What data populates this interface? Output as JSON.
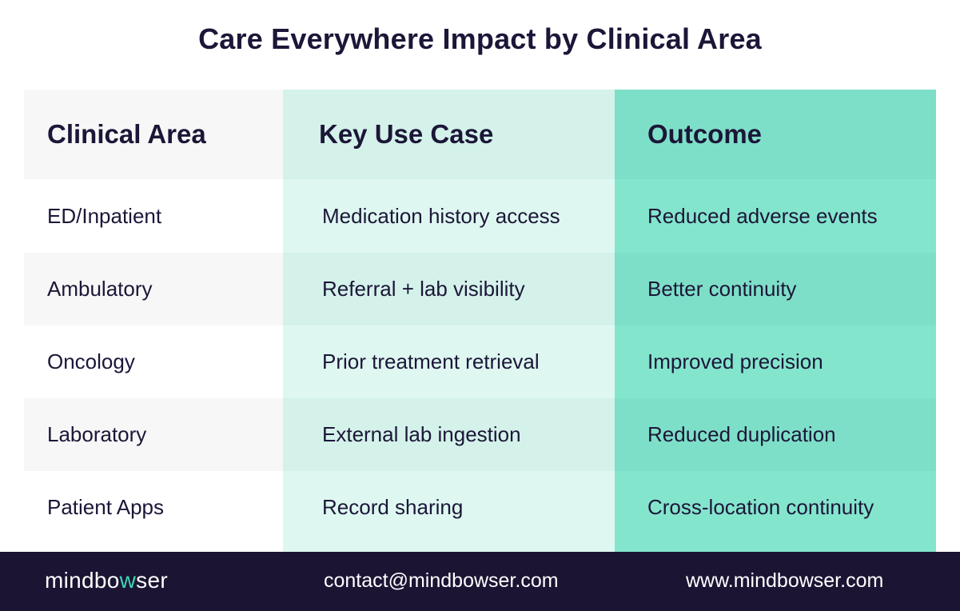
{
  "title": "Care Everywhere Impact by Clinical Area",
  "table": {
    "headers": [
      "Clinical Area",
      "Key Use Case",
      "Outcome"
    ],
    "rows": [
      [
        "ED/Inpatient",
        "Medication history access",
        "Reduced adverse events"
      ],
      [
        "Ambulatory",
        "Referral + lab visibility",
        "Better continuity"
      ],
      [
        "Oncology",
        "Prior treatment retrieval",
        "Improved precision"
      ],
      [
        "Laboratory",
        "External lab ingestion",
        "Reduced duplication"
      ],
      [
        "Patient Apps",
        "Record sharing",
        "Cross-location continuity"
      ]
    ]
  },
  "footer": {
    "logo_start": "mindbo",
    "logo_accent": "w",
    "logo_end": "ser",
    "email": "contact@mindbowser.com",
    "website": "www.mindbowser.com"
  },
  "colors": {
    "navy": "#1c1433",
    "teal_dark": "#7edfc8",
    "teal_light": "#def8f1",
    "accent": "#3ed6b6"
  }
}
